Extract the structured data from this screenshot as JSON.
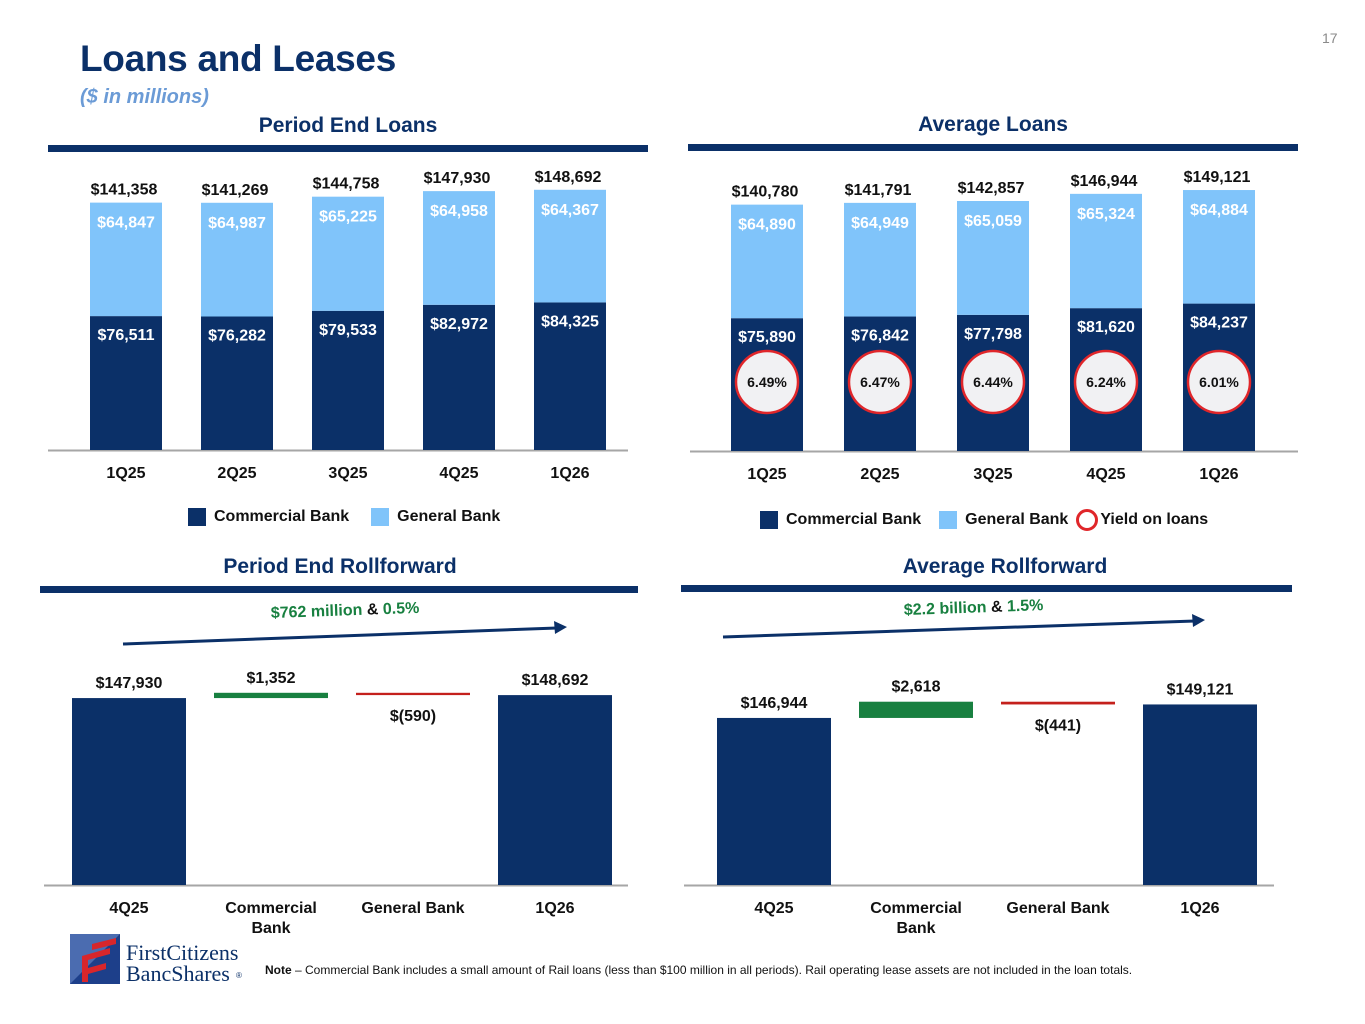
{
  "page": {
    "title": "Loans and Leases",
    "subtitle": "($ in millions)",
    "page_number": "17",
    "note_label": "Note",
    "note_text": " – Commercial Bank includes a small amount of Rail loans (less than $100 million in all periods).  Rail operating lease assets are not included in the loan totals.",
    "logo": {
      "line1": "FirstCitizens",
      "line2": "BancShares",
      "mark": "®"
    }
  },
  "colors": {
    "commercial_bank": "#0b3068",
    "general_bank": "#80c4fa",
    "increase": "#188040",
    "decrease": "#c4201c",
    "yield_ring": "#e0262a",
    "yield_fill": "#f1f1f3",
    "title": "#0b3068",
    "subtitle": "#6b9bd6"
  },
  "chart_data": [
    {
      "id": "period_end_loans",
      "type": "bar",
      "stacked": true,
      "title": "Period End Loans",
      "categories": [
        "1Q25",
        "2Q25",
        "3Q25",
        "4Q25",
        "1Q26"
      ],
      "series": [
        {
          "name": "Commercial Bank",
          "values": [
            76511,
            76282,
            79533,
            82972,
            84325
          ],
          "labels": [
            "$76,511",
            "$76,282",
            "$79,533",
            "$82,972",
            "$84,325"
          ]
        },
        {
          "name": "General Bank",
          "values": [
            64847,
            64987,
            65225,
            64958,
            64367
          ],
          "labels": [
            "$64,847",
            "$64,987",
            "$65,225",
            "$64,958",
            "$64,367"
          ]
        }
      ],
      "totals": [
        141358,
        141269,
        144758,
        147930,
        148692
      ],
      "total_labels": [
        "$141,358",
        "$141,269",
        "$144,758",
        "$147,930",
        "$148,692"
      ],
      "legend": [
        "Commercial Bank",
        "General Bank"
      ],
      "legend_position": "bottom",
      "xlabel": "",
      "ylabel": "",
      "grid": false
    },
    {
      "id": "average_loans",
      "type": "bar",
      "stacked": true,
      "title": "Average Loans",
      "categories": [
        "1Q25",
        "2Q25",
        "3Q25",
        "4Q25",
        "1Q26"
      ],
      "series": [
        {
          "name": "Commercial Bank",
          "values": [
            75890,
            76842,
            77798,
            81620,
            84237
          ],
          "labels": [
            "$75,890",
            "$76,842",
            "$77,798",
            "$81,620",
            "$84,237"
          ]
        },
        {
          "name": "General Bank",
          "values": [
            64890,
            64949,
            65059,
            65324,
            64884
          ],
          "labels": [
            "$64,890",
            "$64,949",
            "$65,059",
            "$65,324",
            "$64,884"
          ]
        }
      ],
      "totals": [
        140780,
        141791,
        142857,
        146944,
        149121
      ],
      "total_labels": [
        "$140,780",
        "$141,791",
        "$142,857",
        "$146,944",
        "$149,121"
      ],
      "yield_on_loans": {
        "name": "Yield on loans",
        "values": [
          6.49,
          6.47,
          6.44,
          6.24,
          6.01
        ],
        "labels": [
          "6.49%",
          "6.47%",
          "6.44%",
          "6.24%",
          "6.01%"
        ]
      },
      "legend": [
        "Commercial Bank",
        "General Bank",
        "Yield on loans"
      ],
      "legend_position": "bottom",
      "xlabel": "",
      "ylabel": "",
      "grid": false
    },
    {
      "id": "period_end_rollforward",
      "type": "bar",
      "subtype": "waterfall",
      "title": "Period End Rollforward",
      "categories": [
        "4Q25",
        "Commercial Bank",
        "General Bank",
        "1Q26"
      ],
      "values": [
        147930,
        1352,
        -590,
        148692
      ],
      "labels": [
        "$147,930",
        "$1,352",
        "$(590)",
        "$148,692"
      ],
      "kinds": [
        "total",
        "increase",
        "decrease",
        "total"
      ],
      "annotation": {
        "amount": "$762 million",
        "joiner": " & ",
        "percent": "0.5%"
      },
      "xlabel": "",
      "ylabel": "",
      "grid": false
    },
    {
      "id": "average_rollforward",
      "type": "bar",
      "subtype": "waterfall",
      "title": "Average Rollforward",
      "categories": [
        "4Q25",
        "Commercial Bank",
        "General Bank",
        "1Q26"
      ],
      "values": [
        146944,
        2618,
        -441,
        149121
      ],
      "labels": [
        "$146,944",
        "$2,618",
        "$(441)",
        "$149,121"
      ],
      "kinds": [
        "total",
        "increase",
        "decrease",
        "total"
      ],
      "annotation": {
        "amount": "$2.2 billion",
        "joiner": " & ",
        "percent": "1.5%"
      },
      "xlabel": "",
      "ylabel": "",
      "grid": false
    }
  ]
}
